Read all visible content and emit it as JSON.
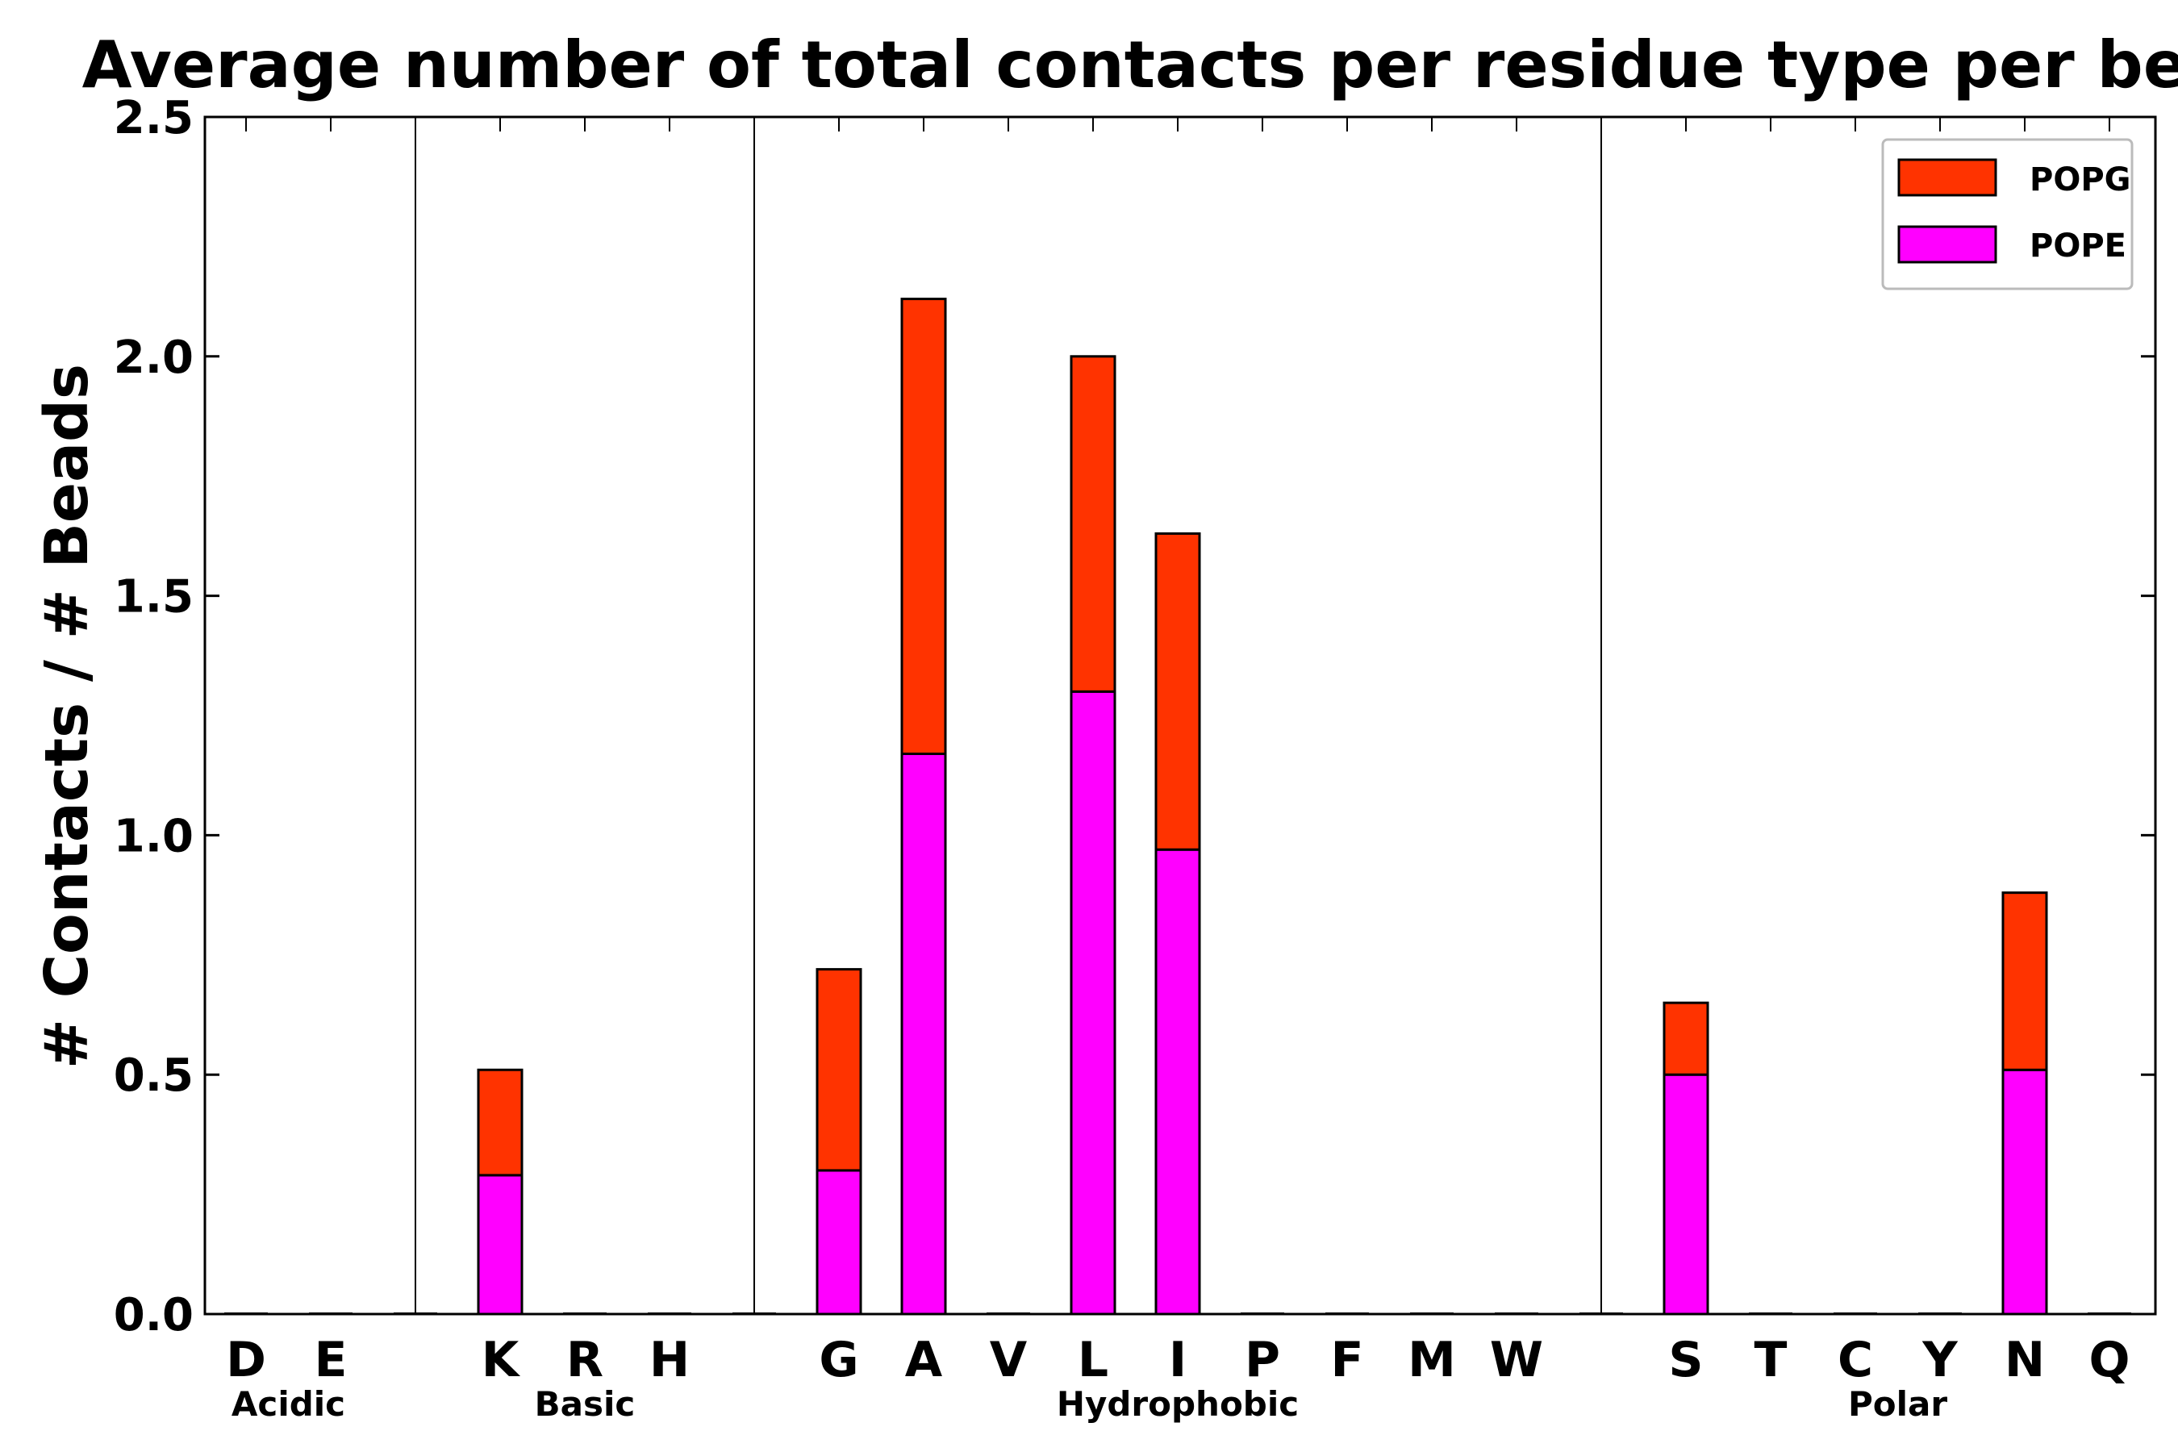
{
  "chart_data": {
    "type": "bar",
    "stacked": true,
    "title": "Average number of total contacts per residue type per bead",
    "xlabel": "",
    "ylabel": "# Contacts / # Beads",
    "ylim": [
      0,
      2.5
    ],
    "yticks": [
      "0.0",
      "0.5",
      "1.0",
      "1.5",
      "2.0",
      "2.5"
    ],
    "categories": [
      "D",
      "E",
      "",
      "K",
      "R",
      "H",
      "",
      "G",
      "A",
      "V",
      "L",
      "I",
      "P",
      "F",
      "M",
      "W",
      "",
      "S",
      "T",
      "C",
      "Y",
      "N",
      "Q"
    ],
    "series": [
      {
        "name": "POPE",
        "color": "#ff00ff",
        "values": [
          0,
          0,
          0,
          0.29,
          0,
          0,
          0,
          0.3,
          1.17,
          0,
          1.3,
          0.97,
          0,
          0,
          0,
          0,
          0,
          0.5,
          0,
          0,
          0,
          0.51,
          0
        ]
      },
      {
        "name": "POPG",
        "color": "#ff3300",
        "values": [
          0,
          0,
          0,
          0.22,
          0,
          0,
          0,
          0.42,
          0.95,
          0,
          0.7,
          0.66,
          0,
          0,
          0,
          0,
          0,
          0.15,
          0,
          0,
          0,
          0.37,
          0
        ]
      }
    ],
    "groups": [
      {
        "label": "Acidic"
      },
      {
        "label": "Basic"
      },
      {
        "label": "Hydrophobic"
      },
      {
        "label": "Polar"
      }
    ],
    "legend": {
      "position": "top-right",
      "entries": [
        {
          "label": "POPG",
          "color": "#ff3300"
        },
        {
          "label": "POPE",
          "color": "#ff00ff"
        }
      ]
    },
    "grid": false
  }
}
